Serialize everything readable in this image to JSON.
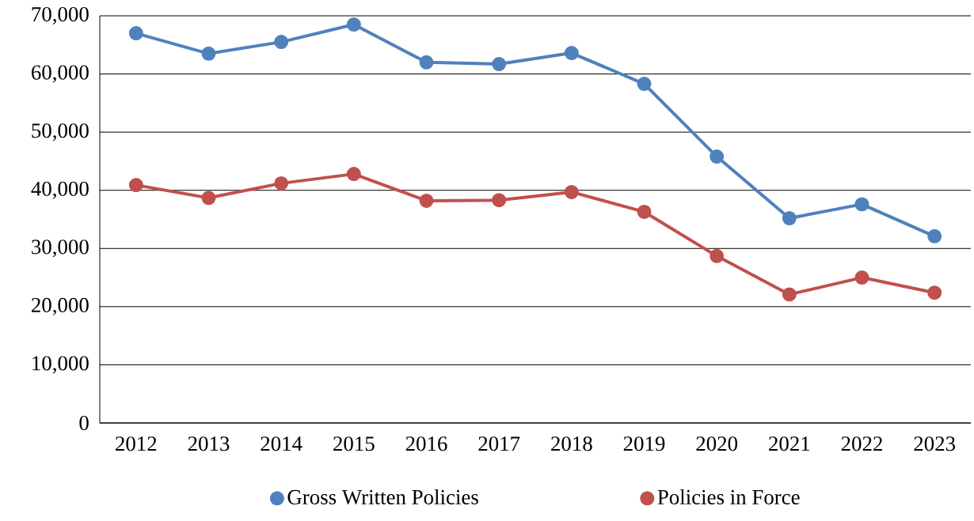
{
  "chart_data": {
    "type": "line",
    "categories": [
      "2012",
      "2013",
      "2014",
      "2015",
      "2016",
      "2017",
      "2018",
      "2019",
      "2020",
      "2021",
      "2022",
      "2023"
    ],
    "series": [
      {
        "name": "Gross Written Policies",
        "color": "#4f81bd",
        "values": [
          67000,
          63500,
          65500,
          68500,
          62000,
          61700,
          63600,
          58300,
          45800,
          35200,
          37600,
          32100
        ]
      },
      {
        "name": "Policies in Force",
        "color": "#c0504d",
        "values": [
          40900,
          38700,
          41200,
          42800,
          38200,
          38300,
          39700,
          36300,
          28700,
          22100,
          25000,
          22400
        ]
      }
    ],
    "ylim": [
      0,
      70000
    ],
    "yticks": [
      0,
      {
        "value": 10000,
        "label": "10,000"
      },
      {
        "value": 20000,
        "label": "20,000"
      },
      {
        "value": 30000,
        "label": "30,000"
      },
      {
        "value": 40000,
        "label": "40,000"
      },
      {
        "value": 50000,
        "label": "50,000"
      },
      {
        "value": 60000,
        "label": "60,000"
      },
      {
        "value": 70000,
        "label": "70,000"
      }
    ],
    "grid": "y",
    "legend": "bottom",
    "marker": "circle",
    "line_style": "solid"
  }
}
